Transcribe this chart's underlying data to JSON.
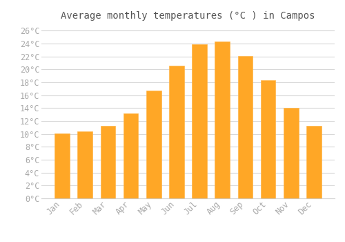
{
  "title": "Average monthly temperatures (°C ) in Campos",
  "months": [
    "Jan",
    "Feb",
    "Mar",
    "Apr",
    "May",
    "Jun",
    "Jul",
    "Aug",
    "Sep",
    "Oct",
    "Nov",
    "Dec"
  ],
  "temperatures": [
    10.1,
    10.4,
    11.2,
    13.2,
    16.7,
    20.6,
    23.9,
    24.3,
    22.1,
    18.3,
    14.0,
    11.2
  ],
  "bar_color": "#FFA726",
  "bar_edge_color": "#FFB74D",
  "background_color": "#FFFFFF",
  "grid_color": "#D8D8D8",
  "text_color": "#AAAAAA",
  "ylim": [
    0,
    27
  ],
  "yticks": [
    0,
    2,
    4,
    6,
    8,
    10,
    12,
    14,
    16,
    18,
    20,
    22,
    24,
    26
  ],
  "title_fontsize": 10,
  "tick_fontsize": 8.5
}
